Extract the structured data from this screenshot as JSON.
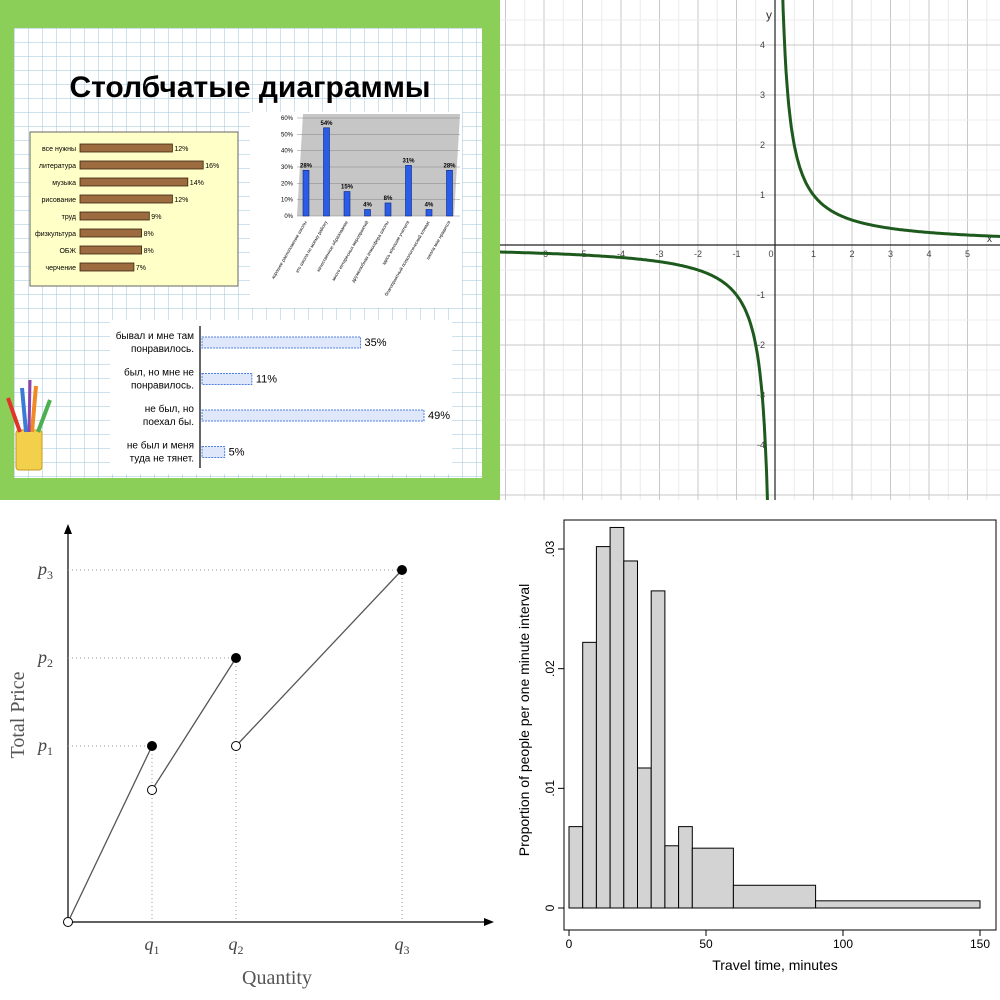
{
  "panel1": {
    "title": "Столбчатые диаграммы",
    "icon": "paintbrush-cup-icon",
    "colors": {
      "frame": "#8bcf59",
      "bar_brown": "#9c6b3f",
      "bar_blue": "#2a5ce8",
      "bar_light": "#dfe8fb"
    },
    "subjects_chart": {
      "type": "bar",
      "orientation": "horizontal",
      "categories": [
        "все нужны",
        "литература",
        "музыка",
        "рисование",
        "труд",
        "физкультура",
        "ОБЖ",
        "черчение"
      ],
      "values": [
        12,
        16,
        14,
        12,
        9,
        8,
        8,
        7
      ],
      "value_labels": [
        "12%",
        "16%",
        "14%",
        "12%",
        "9%",
        "8%",
        "8%",
        "7%"
      ]
    },
    "reasons_chart": {
      "type": "bar",
      "orientation": "vertical",
      "yticks": [
        "0%",
        "10%",
        "20%",
        "30%",
        "40%",
        "50%",
        "60%"
      ],
      "ylim": [
        0,
        60
      ],
      "values": [
        28,
        54,
        15,
        4,
        8,
        31,
        4,
        28
      ],
      "value_labels": [
        "28%",
        "54%",
        "15%",
        "4%",
        "8%",
        "31%",
        "4%",
        "28%"
      ],
      "categories": [
        "хорошее расположение школы",
        "это школа по моему району",
        "качественное образование",
        "много интересных мероприятий",
        "дружелюбная атмосфера школы",
        "здесь хорошие учителя",
        "благоприятный психологический климат",
        "школа мне нравится"
      ]
    },
    "visit_chart": {
      "type": "bar",
      "orientation": "horizontal",
      "categories": [
        [
          "бывал и мне там",
          "понравилось."
        ],
        [
          "был, но мне не",
          "понравилось."
        ],
        [
          "не был, но",
          "поехал бы."
        ],
        [
          "не был и меня",
          "туда не тянет."
        ]
      ],
      "values": [
        35,
        11,
        49,
        5
      ],
      "value_labels": [
        "35%",
        "11%",
        "49%",
        "5%"
      ]
    }
  },
  "panel2": {
    "chart_data": {
      "type": "line",
      "function": "y = 1/x",
      "x_label": "x",
      "y_label": "y",
      "xlim": [
        -7,
        6
      ],
      "ylim": [
        -5,
        5
      ],
      "xticks": [
        "-6",
        "-5",
        "-4",
        "-3",
        "-2",
        "-1",
        "0",
        "1",
        "2",
        "3",
        "4",
        "5"
      ],
      "yticks": [
        "4",
        "3",
        "2",
        "1",
        "-1",
        "-2",
        "-3",
        "-4"
      ],
      "grid": true,
      "color": "#1e5a1e"
    }
  },
  "panel3": {
    "chart_data": {
      "type": "line",
      "xlabel": "Quantity",
      "ylabel": "Total Price",
      "x_ticks": [
        {
          "base": "q",
          "sub": "1"
        },
        {
          "base": "q",
          "sub": "2"
        },
        {
          "base": "q",
          "sub": "3"
        }
      ],
      "y_ticks": [
        {
          "base": "p",
          "sub": "1"
        },
        {
          "base": "p",
          "sub": "2"
        },
        {
          "base": "p",
          "sub": "3"
        }
      ],
      "segments": [
        {
          "from": [
            0,
            0
          ],
          "to": [
            1,
            1
          ],
          "start_open": true,
          "end_open": false
        },
        {
          "from": [
            1,
            0.5
          ],
          "to": [
            2,
            2
          ],
          "start_open": true,
          "end_open": false
        },
        {
          "from": [
            2,
            1
          ],
          "to": [
            4,
            3
          ],
          "start_open": true,
          "end_open": false
        }
      ]
    }
  },
  "panel4": {
    "chart_data": {
      "type": "bar",
      "xlabel": "Travel time, minutes",
      "ylabel": "Proportion of people per one minute interval",
      "xlim": [
        0,
        150
      ],
      "ylim": [
        0,
        0.034
      ],
      "xticks": [
        "0",
        "50",
        "100",
        "150"
      ],
      "yticks": [
        "0",
        ".01",
        ".02",
        ".03"
      ],
      "bins": [
        {
          "x0": 0,
          "x1": 5,
          "value": 0.0068
        },
        {
          "x0": 5,
          "x1": 10,
          "value": 0.0222
        },
        {
          "x0": 10,
          "x1": 15,
          "value": 0.0302
        },
        {
          "x0": 15,
          "x1": 20,
          "value": 0.0318
        },
        {
          "x0": 20,
          "x1": 25,
          "value": 0.029
        },
        {
          "x0": 25,
          "x1": 30,
          "value": 0.0117
        },
        {
          "x0": 30,
          "x1": 35,
          "value": 0.0265
        },
        {
          "x0": 35,
          "x1": 40,
          "value": 0.0052
        },
        {
          "x0": 40,
          "x1": 45,
          "value": 0.0068
        },
        {
          "x0": 45,
          "x1": 60,
          "value": 0.005
        },
        {
          "x0": 60,
          "x1": 90,
          "value": 0.0019
        },
        {
          "x0": 90,
          "x1": 150,
          "value": 0.0006
        }
      ],
      "bar_color": "#d3d3d3"
    }
  }
}
